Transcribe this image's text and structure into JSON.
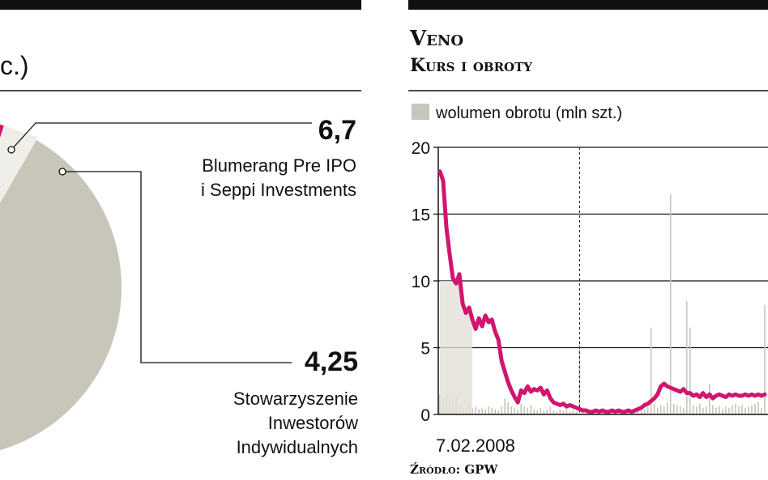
{
  "left_panel": {
    "title_fragment": "c.)",
    "chart_data": {
      "type": "pie",
      "slices": [
        {
          "label_lines": [
            "Blumerang Pre IPO",
            "i Seppi Investments"
          ],
          "value": 6.7,
          "value_label": "6,7",
          "color": "#d0166e"
        },
        {
          "label_lines": [
            "Stowarzyszenie",
            "Inwestorów",
            "Indywidualnych"
          ],
          "value": 4.25,
          "value_label": "4,25",
          "color": "#c8c6b8"
        }
      ]
    }
  },
  "right_panel": {
    "title": "Veno",
    "subtitle": "Kurs i obroty",
    "legend_label": "wolumen obrotu (mln szt.)",
    "source": "Źródło: GPW",
    "chart_data": {
      "type": "line",
      "title": "Veno",
      "subtitle": "Kurs i obroty",
      "xlabel": "",
      "ylabel": "",
      "ylim": [
        0,
        20
      ],
      "y_ticks": [
        0,
        5,
        10,
        15,
        20
      ],
      "y_tick_labels": [
        "0",
        "5",
        "10",
        "15",
        "20"
      ],
      "x_tick_labels": [
        "7.02.2008"
      ],
      "grid": true,
      "legend": "top-left",
      "series": [
        {
          "kind": "line",
          "color": "#d0166e",
          "x": [
            0,
            1,
            2,
            3,
            4,
            5,
            6,
            7,
            8,
            9,
            10,
            11,
            12,
            13,
            14,
            15,
            16,
            17,
            18,
            19,
            20,
            21,
            22,
            23,
            24,
            25,
            26,
            27,
            28,
            29,
            30,
            31,
            32,
            33,
            34,
            35,
            36,
            37,
            38,
            39,
            40,
            41,
            42,
            43,
            44,
            45,
            46,
            47,
            48,
            49,
            50,
            51,
            52,
            53,
            54,
            55,
            56,
            57,
            58,
            59,
            60,
            61,
            62,
            63,
            64,
            65,
            66,
            67,
            68,
            69,
            70,
            71,
            72,
            73,
            74,
            75,
            76,
            77,
            78,
            79,
            80,
            81,
            82,
            83,
            84,
            85,
            86,
            87,
            88,
            89,
            90,
            91,
            92,
            93,
            94,
            95,
            96,
            97,
            98,
            99,
            100
          ],
          "values": [
            18.2,
            17.5,
            14,
            12,
            10.2,
            9.8,
            10.5,
            8.3,
            7.6,
            8,
            7.1,
            6.4,
            7.2,
            6.6,
            7.4,
            6.9,
            7.1,
            6.2,
            5.6,
            4,
            3.2,
            2.4,
            1.8,
            1.3,
            0.9,
            1.8,
            1.6,
            2.1,
            1.7,
            1.9,
            1.8,
            2,
            1.5,
            1.8,
            1.2,
            0.9,
            0.8,
            0.7,
            0.8,
            0.6,
            0.7,
            0.6,
            0.5,
            0.4,
            0.3,
            0.3,
            0.2,
            0.2,
            0.3,
            0.2,
            0.3,
            0.2,
            0.2,
            0.3,
            0.2,
            0.3,
            0.2,
            0.2,
            0.3,
            0.2,
            0.3,
            0.4,
            0.5,
            0.7,
            0.8,
            1,
            1.2,
            1.5,
            2.1,
            2.3,
            2.1,
            2,
            1.9,
            1.8,
            1.7,
            1.9,
            1.6,
            1.6,
            1.4,
            1.5,
            1.3,
            1.6,
            1.3,
            1.5,
            1.2,
            1.4,
            1.5,
            1.4,
            1.3,
            1.5,
            1.4,
            1.5,
            1.4,
            1.4,
            1.5,
            1.4,
            1.5,
            1.4,
            1.5,
            1.4,
            1.5
          ]
        },
        {
          "kind": "volume_bars",
          "name": "wolumen obrotu (mln szt.)",
          "color": "#c8c6b8",
          "x": [
            0,
            1,
            2,
            3,
            4,
            5,
            6,
            7,
            8,
            9,
            10,
            11,
            12,
            13,
            14,
            15,
            16,
            17,
            18,
            19,
            20,
            21,
            22,
            23,
            24,
            25,
            26,
            27,
            28,
            29,
            30,
            31,
            32,
            33,
            34,
            35,
            36,
            37,
            38,
            39,
            40,
            41,
            42,
            43,
            44,
            45,
            46,
            47,
            48,
            49,
            50,
            51,
            52,
            53,
            54,
            55,
            56,
            57,
            58,
            59,
            60,
            61,
            62,
            63,
            64,
            65,
            66,
            67,
            68,
            69,
            70,
            71,
            72,
            73,
            74,
            75,
            76,
            77,
            78,
            79,
            80,
            81,
            82,
            83,
            84,
            85,
            86,
            87,
            88,
            89,
            90,
            91,
            92,
            93,
            94,
            95,
            96,
            97,
            98,
            99,
            100
          ],
          "values": [
            1.5,
            1.3,
            1.6,
            1.2,
            1,
            1.4,
            0.8,
            0.6,
            0.5,
            0.7,
            0.5,
            0.6,
            0.4,
            0.5,
            0.4,
            0.6,
            0.5,
            0.4,
            0.3,
            0.6,
            1.2,
            0.9,
            0.6,
            0.5,
            0.4,
            0.8,
            0.6,
            0.5,
            0.7,
            0.4,
            0.3,
            0.5,
            0.3,
            0.4,
            0.6,
            0.3,
            0.2,
            0.4,
            0.3,
            0.5,
            0.2,
            0.3,
            0.2,
            5.5,
            0.4,
            0.3,
            0.2,
            0.3,
            0.2,
            0.4,
            0.3,
            0.2,
            0.3,
            0.2,
            0.3,
            0.2,
            0.4,
            0.3,
            0.2,
            0.3,
            0.4,
            0.3,
            0.5,
            0.4,
            0.6,
            6.5,
            0.8,
            0.5,
            0.7,
            0.6,
            0.9,
            16.5,
            0.8,
            0.7,
            0.6,
            0.5,
            8.5,
            6.5,
            0.7,
            0.6,
            0.8,
            0.5,
            0.6,
            2.3,
            0.7,
            0.5,
            0.6,
            0.4,
            0.6,
            0.5,
            0.7,
            0.8,
            0.6,
            0.7,
            0.5,
            0.6,
            0.7,
            0.8,
            0.9,
            0.5,
            8.2
          ]
        }
      ],
      "marker_x": 43
    }
  }
}
